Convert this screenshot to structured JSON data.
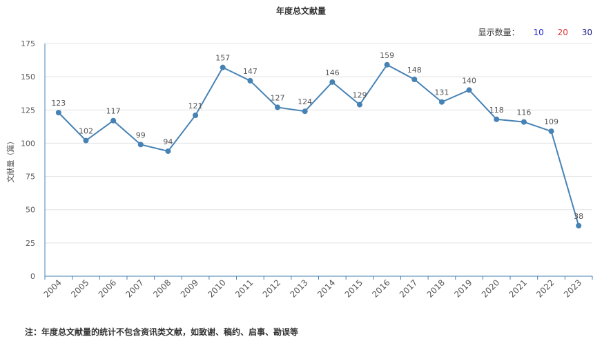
{
  "title": "年度总文献量",
  "display_count": {
    "label": "显示数量：",
    "options": [
      "10",
      "20",
      "30"
    ],
    "colors": [
      "#1f1fcc",
      "#e03030",
      "#1a1a8c"
    ]
  },
  "footnote": "注：年度总文献量的统计不包含资讯类文献，如致谢、稿约、启事、勘误等",
  "chart_data": {
    "type": "line",
    "title": "年度总文献量",
    "xlabel": "",
    "ylabel": "文献量（篇）",
    "categories": [
      "2004",
      "2005",
      "2006",
      "2007",
      "2008",
      "2009",
      "2010",
      "2011",
      "2012",
      "2013",
      "2014",
      "2015",
      "2016",
      "2017",
      "2018",
      "2019",
      "2020",
      "2021",
      "2022",
      "2023"
    ],
    "series": [
      {
        "values": [
          123,
          102,
          117,
          99,
          94,
          121,
          157,
          147,
          127,
          124,
          146,
          129,
          159,
          148,
          131,
          140,
          118,
          116,
          109,
          38
        ]
      }
    ],
    "ylim": [
      0,
      175
    ],
    "yticks": [
      0,
      25,
      50,
      75,
      100,
      125,
      150,
      175
    ],
    "grid": true,
    "line_color": "#4682b4",
    "data_labels": true
  }
}
